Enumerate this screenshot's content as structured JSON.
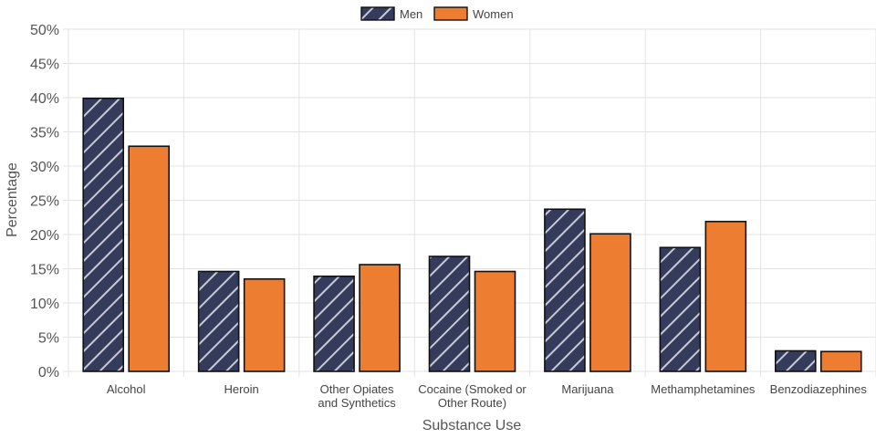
{
  "chart_data": {
    "type": "bar",
    "categories": [
      [
        "Alcohol"
      ],
      [
        "Heroin"
      ],
      [
        "Other Opiates",
        "and Synthetics"
      ],
      [
        "Cocaine (Smoked or",
        "Other Route)"
      ],
      [
        "Marijuana"
      ],
      [
        "Methamphetamines"
      ],
      [
        "Benzodiazephines"
      ]
    ],
    "series": [
      {
        "name": "Men",
        "values": [
          39.9,
          14.6,
          13.9,
          16.8,
          23.7,
          18.1,
          3.0
        ],
        "color": "#353b5a",
        "pattern": "diagonal-stripes"
      },
      {
        "name": "Women",
        "values": [
          32.9,
          13.5,
          15.6,
          14.6,
          20.1,
          21.9,
          2.9
        ],
        "color": "#ed7d31"
      }
    ],
    "xlabel": "Substance Use",
    "ylabel": "Percentage",
    "ylim": [
      0,
      50
    ],
    "yticks": [
      0,
      5,
      10,
      15,
      20,
      25,
      30,
      35,
      40,
      45,
      50
    ],
    "ytick_suffix": "%",
    "grid": true,
    "legend_position": "top-center"
  }
}
